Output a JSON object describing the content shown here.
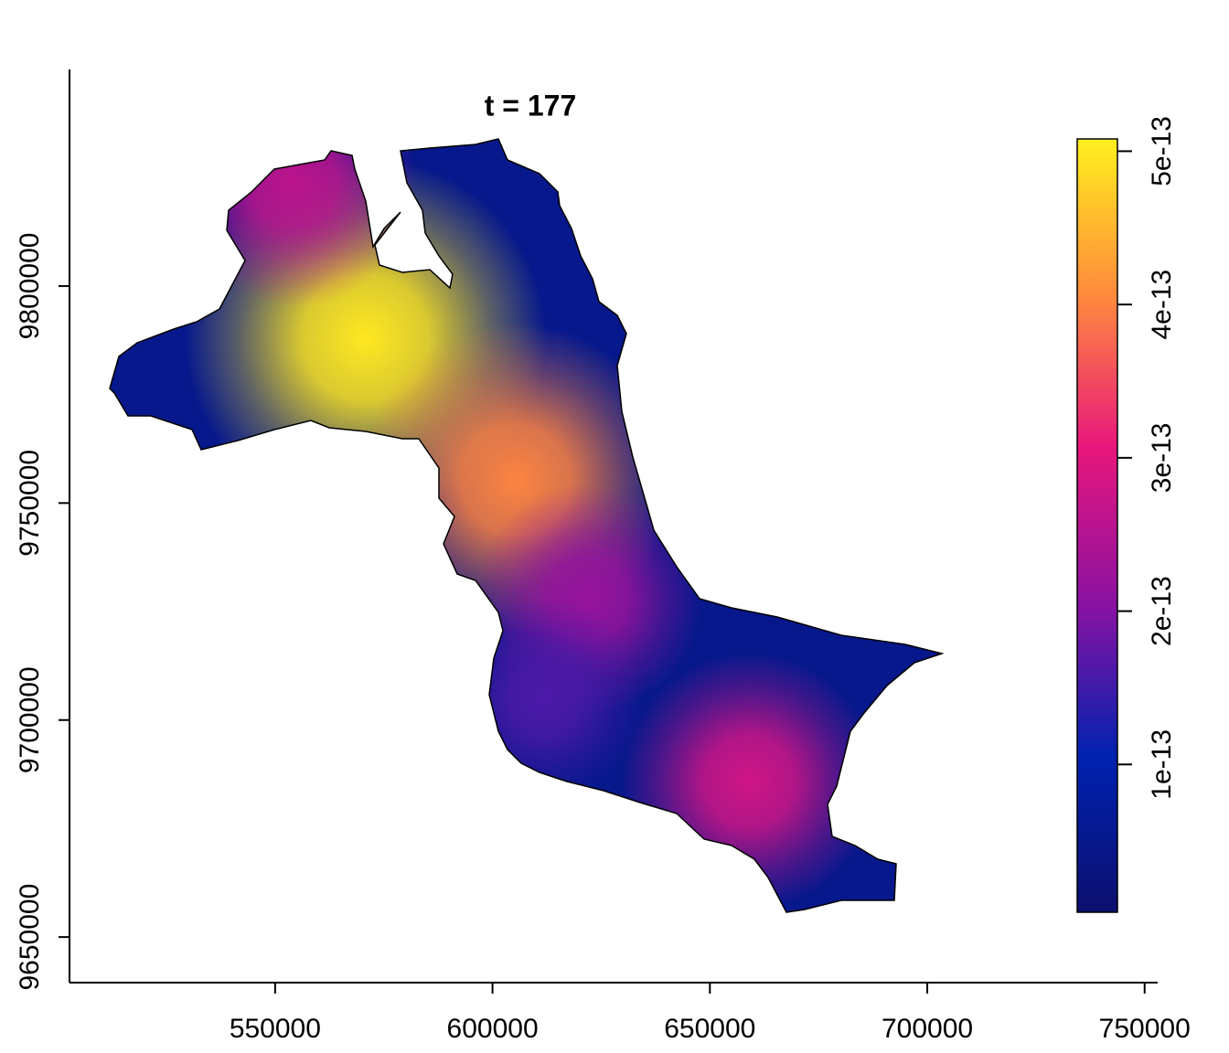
{
  "chart_data": {
    "type": "raster",
    "title": "t = 177",
    "xlim": [
      502700,
      753000
    ],
    "ylim": [
      9639500,
      9849900
    ],
    "xticks": [
      550000,
      600000,
      650000,
      700000,
      750000
    ],
    "yticks": [
      9650000,
      9700000,
      9750000,
      9800000
    ],
    "zlim": [
      3.6e-15,
      5.08e-13
    ],
    "zticks": [
      1e-13,
      2e-13,
      3e-13,
      4e-13,
      5e-13
    ],
    "colors": [
      "#0c0f6e",
      "#0022b0",
      "#8a12a2",
      "#e8167c",
      "#ff8c3c",
      "#fff01e"
    ],
    "background_value": 5e-14,
    "hotspots": [
      {
        "x": 570800,
        "y": 9788000,
        "value": 5e-13
      },
      {
        "x": 605400,
        "y": 9755400,
        "value": 4e-13
      },
      {
        "x": 659000,
        "y": 9685900,
        "value": 2.8e-13
      },
      {
        "x": 554000,
        "y": 9823800,
        "value": 2.6e-13
      },
      {
        "x": 622000,
        "y": 9728000,
        "value": 2.2e-13
      },
      {
        "x": 612000,
        "y": 9705000,
        "value": 1.6e-13
      }
    ]
  }
}
